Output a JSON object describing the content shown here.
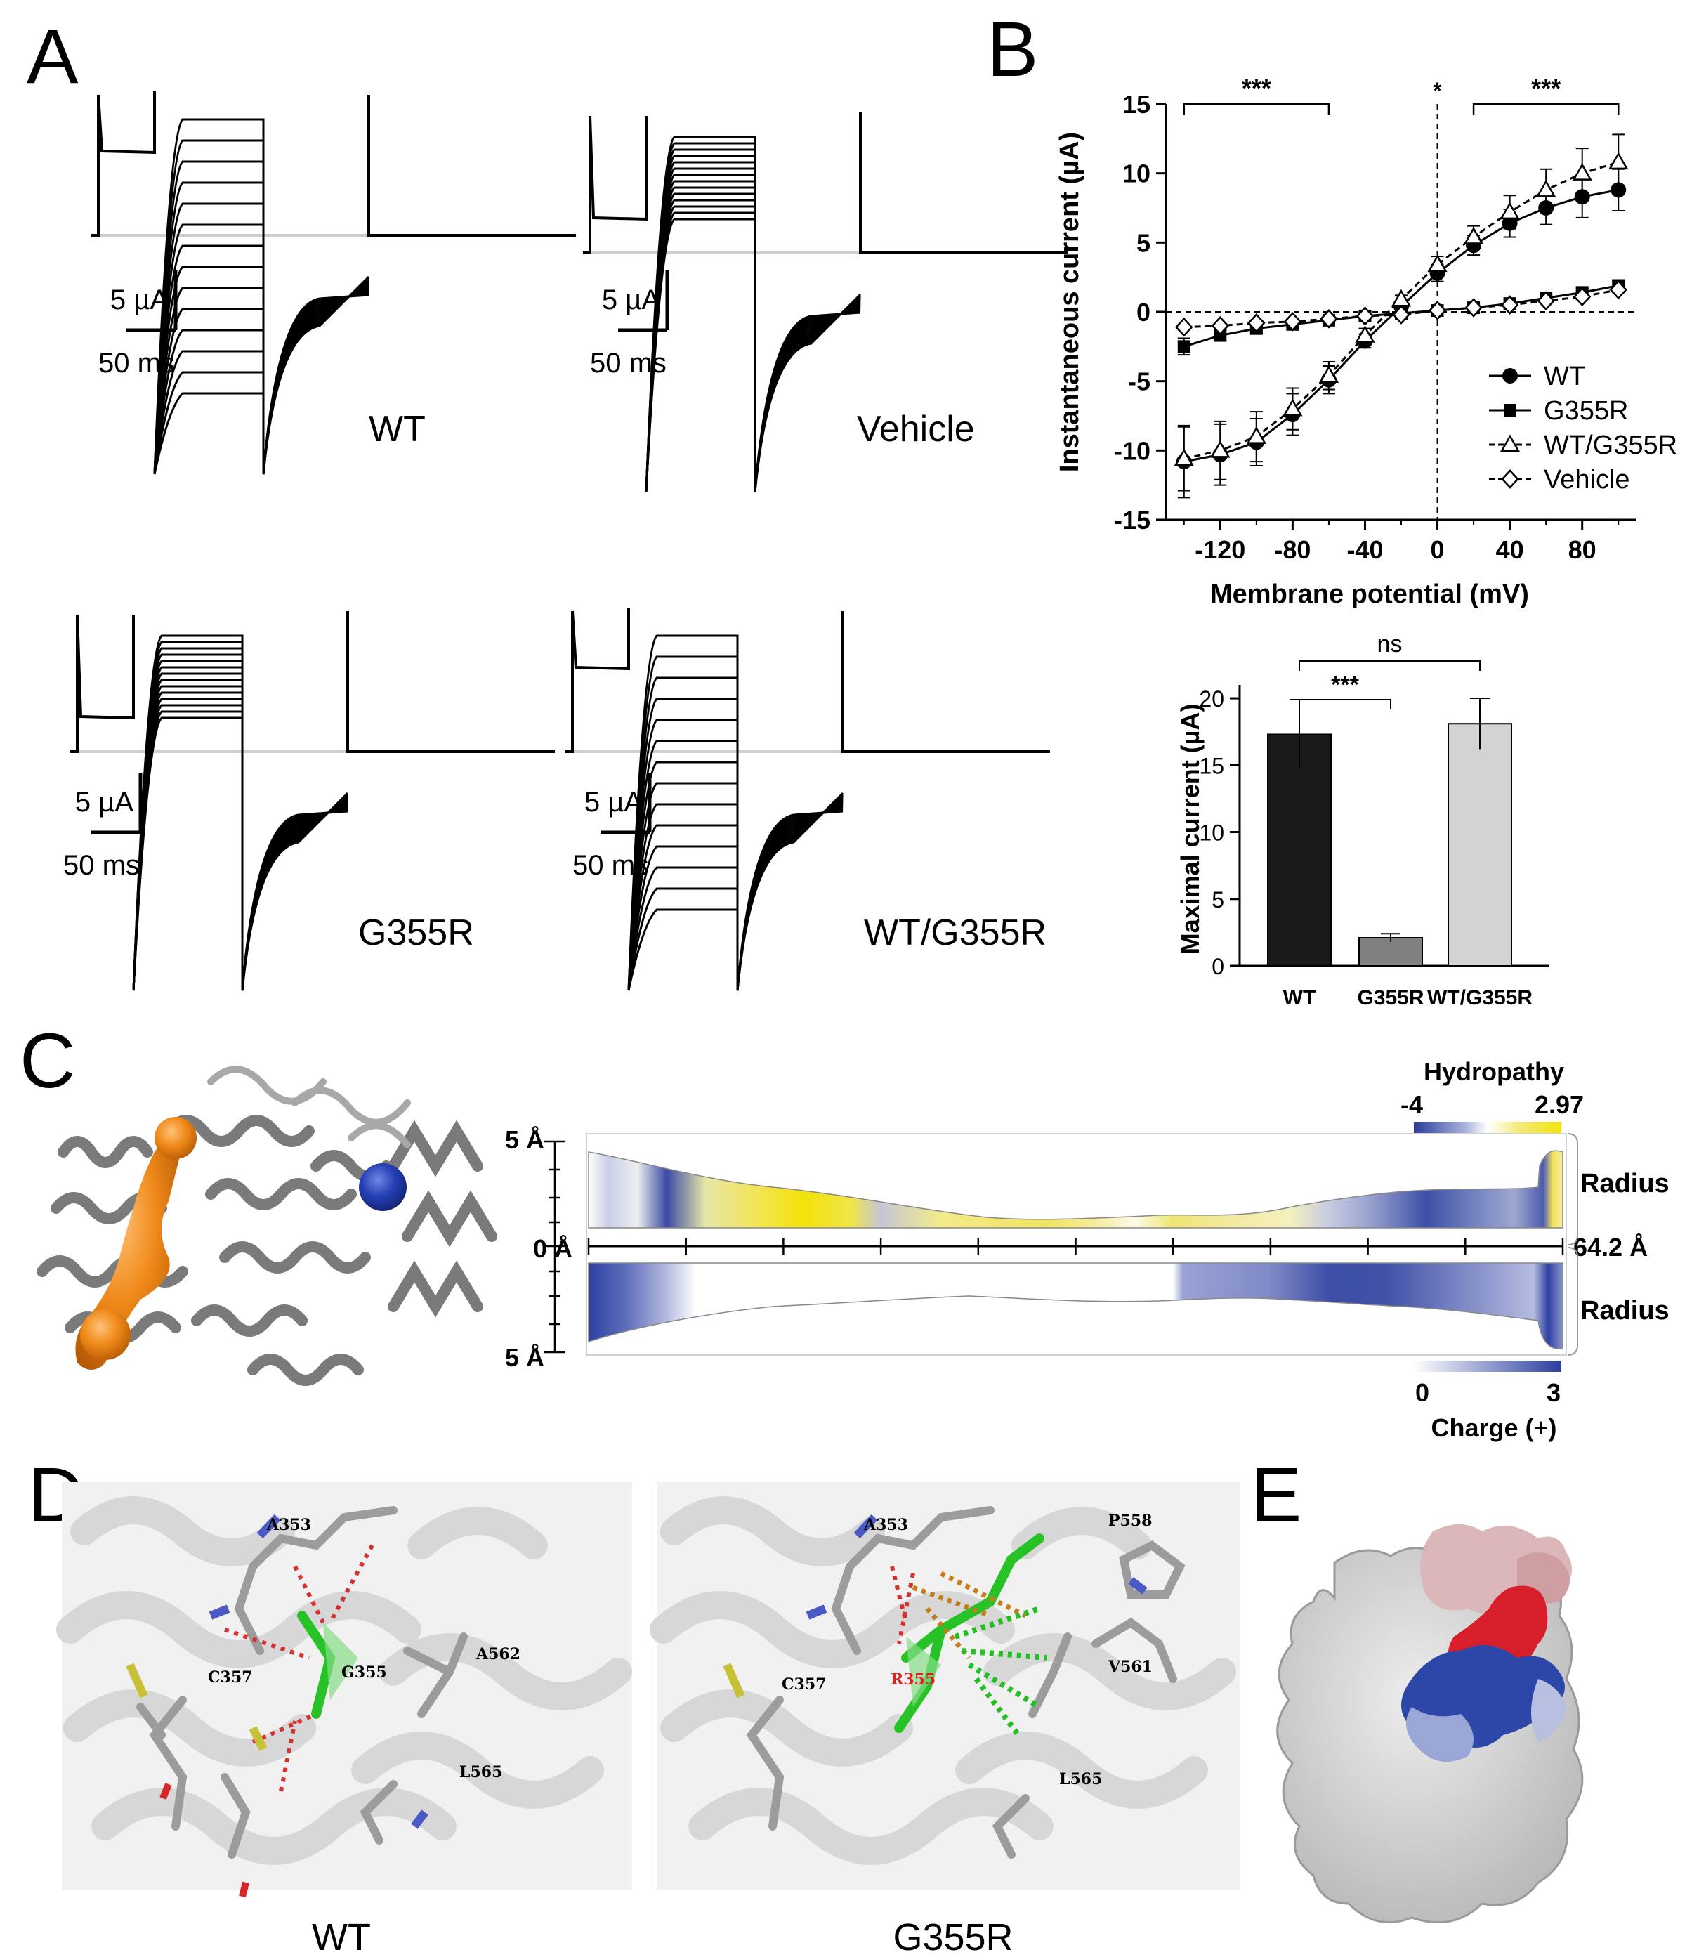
{
  "panel_letters": {
    "a": "A",
    "b": "B",
    "c": "C",
    "d": "D",
    "e": "E"
  },
  "panel_a": {
    "traces": [
      {
        "label": "WT",
        "scale_current": "5 µA",
        "scale_time": "50 ms"
      },
      {
        "label": "Vehicle",
        "scale_current": "5 µA",
        "scale_time": "50 ms"
      },
      {
        "label": "G355R",
        "scale_current": "5 µA",
        "scale_time": "50 ms"
      },
      {
        "label": "WT/G355R",
        "scale_current": "5 µA",
        "scale_time": "50 ms"
      }
    ]
  },
  "chart_data": [
    {
      "type": "line",
      "xlabel": "Membrane potential (mV)",
      "ylabel": "Instantaneous current (µA)",
      "xlim": [
        -150,
        110
      ],
      "ylim": [
        -15,
        15
      ],
      "x_ticks": [
        -120,
        -80,
        -40,
        0,
        40,
        80
      ],
      "x_tick_labels": [
        "-120",
        "-80",
        "-40",
        "0",
        "40",
        "80"
      ],
      "y_ticks": [
        -15,
        -10,
        -5,
        0,
        5,
        10,
        15
      ],
      "y_tick_labels": [
        "-15",
        "-10",
        "-5",
        "0",
        "5",
        "10",
        "15"
      ],
      "legend_position": "bottom-right",
      "significance": [
        {
          "label": "***",
          "x1": -140,
          "x2": -60
        },
        {
          "label": "*",
          "x": 0
        },
        {
          "label": "***",
          "x1": 20,
          "x2": 100
        }
      ],
      "x": [
        -140,
        -120,
        -100,
        -80,
        -60,
        -40,
        -20,
        0,
        20,
        40,
        60,
        80,
        100
      ],
      "series": [
        {
          "name": "WT",
          "marker": "circle",
          "values": [
            -10.8,
            -10.3,
            -9.4,
            -7.4,
            -4.9,
            -2.1,
            0.4,
            2.8,
            4.8,
            6.4,
            7.5,
            8.3,
            8.8
          ],
          "errors": [
            2.6,
            2.2,
            1.7,
            1.5,
            1.0,
            0.5,
            0.3,
            0.6,
            0.7,
            1.0,
            1.2,
            1.5,
            1.5
          ]
        },
        {
          "name": "G355R",
          "marker": "square",
          "values": [
            -2.5,
            -1.7,
            -1.2,
            -0.9,
            -0.6,
            -0.3,
            -0.1,
            0.1,
            0.3,
            0.6,
            1.0,
            1.4,
            1.9
          ],
          "errors": [
            0.6,
            0.4,
            0.3,
            0.2,
            0.2,
            0.1,
            0.1,
            0.1,
            0.1,
            0.2,
            0.2,
            0.3,
            0.3
          ]
        },
        {
          "name": "WT/G355R",
          "marker": "triangle",
          "values": [
            -10.6,
            -10.0,
            -9.0,
            -7.0,
            -4.6,
            -1.7,
            0.9,
            3.4,
            5.4,
            7.2,
            8.8,
            10.0,
            10.8
          ],
          "errors": [
            2.3,
            2.1,
            1.8,
            1.5,
            1.0,
            0.5,
            0.3,
            0.6,
            0.8,
            1.2,
            1.5,
            1.8,
            2.0
          ]
        },
        {
          "name": "Vehicle",
          "marker": "diamond",
          "values": [
            -1.1,
            -1.0,
            -0.8,
            -0.7,
            -0.5,
            -0.3,
            -0.2,
            0.1,
            0.3,
            0.5,
            0.8,
            1.1,
            1.6
          ],
          "errors": [
            0.2,
            0.2,
            0.2,
            0.1,
            0.1,
            0.1,
            0.1,
            0.1,
            0.1,
            0.1,
            0.1,
            0.2,
            0.2
          ]
        }
      ]
    },
    {
      "type": "bar",
      "ylabel": "Maximal current (µA)",
      "ylim": [
        0,
        21
      ],
      "y_ticks": [
        0,
        5,
        10,
        15,
        20
      ],
      "y_tick_labels": [
        "0",
        "5",
        "10",
        "15",
        "20"
      ],
      "categories": [
        "WT",
        "G355R",
        "WT/G355R"
      ],
      "values": [
        17.3,
        2.1,
        18.1
      ],
      "errors": [
        2.6,
        0.3,
        1.9
      ],
      "colors": [
        "#1a1a1a",
        "#808080",
        "#d3d3d3"
      ],
      "significance": [
        {
          "label": "***",
          "from": "WT",
          "to": "G355R"
        },
        {
          "label": "ns",
          "from": "WT",
          "to": "WT/G355R"
        }
      ]
    }
  ],
  "panel_c": {
    "hydropathy_label": "Hydropathy",
    "hydropathy_min": "-4",
    "hydropathy_max": "2.97",
    "radius_label_top": "Radius",
    "radius_label_bottom": "Radius",
    "axis_top": "5 Å",
    "axis_zero": "0 Å",
    "axis_bottom": "5 Å",
    "length_label": "64.2 Å",
    "charge_label": "Charge (+)",
    "charge_min": "0",
    "charge_max": "3",
    "colors": {
      "hydrophilic": "#2d3c9c",
      "hydrophobic": "#f2e30a",
      "charge": "#2a3fa0"
    }
  },
  "panel_d": {
    "left": {
      "caption": "WT",
      "residues": [
        "A353",
        "C357",
        "G355",
        "A562",
        "L565"
      ]
    },
    "right": {
      "caption": "G355R",
      "residues": [
        "A353",
        "P558",
        "C357",
        "R355",
        "V561",
        "L565"
      ]
    }
  },
  "panel_e": {
    "colors": {
      "red": "#d61f2a",
      "blue": "#2c47a8",
      "pink": "#e0b0b4"
    }
  }
}
